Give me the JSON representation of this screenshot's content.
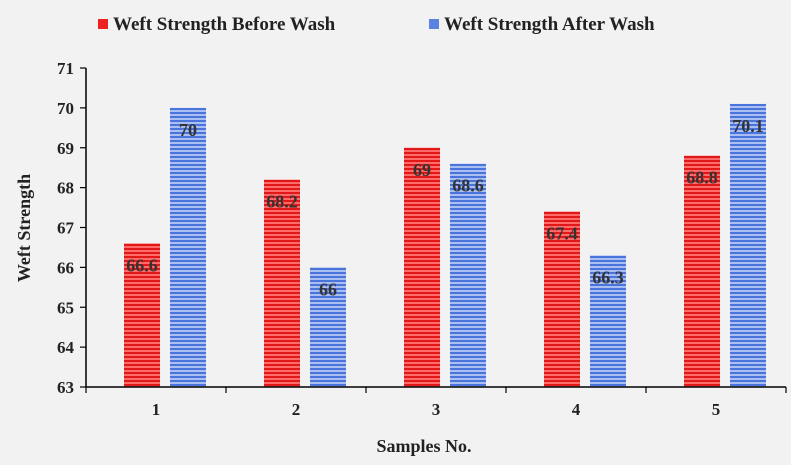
{
  "chart_data": {
    "type": "bar",
    "title": "",
    "xlabel": "Samples No.",
    "ylabel": "Weft Strength",
    "categories": [
      "1",
      "2",
      "3",
      "4",
      "5"
    ],
    "series": [
      {
        "name": "Weft Strength Before Wash",
        "values": [
          66.6,
          68.2,
          69,
          67.4,
          68.8
        ],
        "color": "#ee2222"
      },
      {
        "name": "Weft Strength After Wash",
        "values": [
          70,
          66,
          68.6,
          66.3,
          70.1
        ],
        "color": "#5b82e0"
      }
    ],
    "data_labels": [
      [
        "66.6",
        "68.2",
        "69",
        "67.4",
        "68.8"
      ],
      [
        "70",
        "66",
        "68.6",
        "66.3",
        "70.1"
      ]
    ],
    "ylim": [
      63,
      71
    ],
    "yticks": [
      "63",
      "64",
      "65",
      "66",
      "67",
      "68",
      "69",
      "70",
      "71"
    ],
    "legend_position": "top",
    "grid": false
  }
}
